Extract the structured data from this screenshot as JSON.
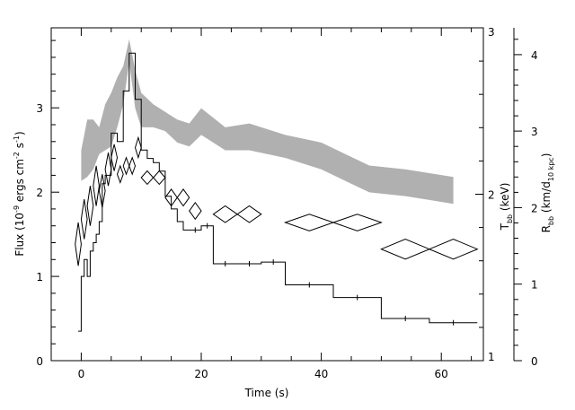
{
  "chart_data": {
    "type": "line",
    "xlabel": "Time (s)",
    "xlim": [
      -5,
      67
    ],
    "x_ticks": [
      "0",
      "20",
      "40",
      "60"
    ],
    "axes": {
      "flux": {
        "label_main": "Flux (10",
        "label_sup1": "-9",
        "label_mid": " ergs cm",
        "label_sup2": "-2",
        "label_mid2": " s",
        "label_sup3": "-1",
        "label_end": ")",
        "ylim": [
          0,
          3.95
        ],
        "ticks": [
          "0",
          "1",
          "2",
          "3"
        ]
      },
      "temperature": {
        "label_main": "T",
        "label_sub": "bb",
        "label_end": " (keV)",
        "ylim": [
          1,
          3
        ],
        "ticks": [
          "1",
          "2",
          "3"
        ]
      },
      "radius": {
        "label_main": "R",
        "label_sub": "bb",
        "label_mid": " (km/d",
        "label_sub2": "10 kpc",
        "label_end": ")",
        "ylim": [
          0,
          4.35
        ],
        "ticks": [
          "0",
          "1",
          "2",
          "3",
          "4"
        ]
      }
    },
    "series": [
      {
        "kind": "step",
        "axis": "flux",
        "color": "#000000",
        "edges": [
          -0.5,
          0,
          0.5,
          1,
          1.5,
          2,
          2.5,
          3,
          3.5,
          4,
          5,
          6,
          7,
          8,
          9,
          10,
          11,
          12,
          13,
          14,
          15,
          16,
          17,
          18,
          20,
          22,
          26,
          30,
          34,
          42,
          50,
          58,
          66
        ],
        "values": [
          0.35,
          1.0,
          1.2,
          1.0,
          1.3,
          1.4,
          1.5,
          1.65,
          2.1,
          2.2,
          2.7,
          2.6,
          3.2,
          3.65,
          3.1,
          2.5,
          2.4,
          2.35,
          2.25,
          1.95,
          1.8,
          1.65,
          1.55,
          1.55,
          1.6,
          1.15,
          1.15,
          1.17,
          0.9,
          0.75,
          0.5,
          0.45
        ]
      },
      {
        "kind": "band",
        "axis": "radius",
        "color": "#b0b0b0",
        "x": [
          0,
          1,
          2,
          3,
          4,
          5,
          6,
          7,
          8,
          9,
          10,
          12,
          14,
          16,
          18,
          20,
          24,
          28,
          34,
          40,
          44,
          48,
          54,
          58,
          62
        ],
        "lower": [
          2.35,
          2.4,
          2.5,
          2.7,
          2.75,
          2.8,
          3.05,
          3.35,
          3.9,
          3.3,
          3.05,
          3.05,
          3.0,
          2.85,
          2.8,
          2.95,
          2.75,
          2.75,
          2.65,
          2.5,
          2.35,
          2.2,
          2.15,
          2.1,
          2.05
        ],
        "upper": [
          2.75,
          3.15,
          3.15,
          3.05,
          3.35,
          3.5,
          3.7,
          3.85,
          4.2,
          3.8,
          3.5,
          3.35,
          3.25,
          3.15,
          3.1,
          3.3,
          3.05,
          3.1,
          2.95,
          2.85,
          2.7,
          2.55,
          2.5,
          2.45,
          2.4
        ]
      },
      {
        "kind": "diamonds",
        "axis": "temperature",
        "color": "#000000",
        "points": [
          {
            "x": -0.5,
            "y": 1.7,
            "dx": 0.5,
            "dy": 0.13
          },
          {
            "x": 0.5,
            "y": 1.85,
            "dx": 0.5,
            "dy": 0.12
          },
          {
            "x": 1.5,
            "y": 1.93,
            "dx": 0.5,
            "dy": 0.12
          },
          {
            "x": 2.5,
            "y": 2.05,
            "dx": 0.5,
            "dy": 0.12
          },
          {
            "x": 3.5,
            "y": 2.02,
            "dx": 0.5,
            "dy": 0.1
          },
          {
            "x": 4.5,
            "y": 2.15,
            "dx": 0.5,
            "dy": 0.1
          },
          {
            "x": 5.5,
            "y": 2.22,
            "dx": 0.5,
            "dy": 0.08
          },
          {
            "x": 6.5,
            "y": 2.12,
            "dx": 0.5,
            "dy": 0.05
          },
          {
            "x": 7.5,
            "y": 2.17,
            "dx": 0.5,
            "dy": 0.05
          },
          {
            "x": 8.5,
            "y": 2.17,
            "dx": 0.5,
            "dy": 0.05
          },
          {
            "x": 9.5,
            "y": 2.28,
            "dx": 0.5,
            "dy": 0.06
          },
          {
            "x": 11,
            "y": 2.1,
            "dx": 1,
            "dy": 0.04
          },
          {
            "x": 13,
            "y": 2.1,
            "dx": 1,
            "dy": 0.04
          },
          {
            "x": 15,
            "y": 1.98,
            "dx": 1,
            "dy": 0.05
          },
          {
            "x": 17,
            "y": 1.98,
            "dx": 1,
            "dy": 0.05
          },
          {
            "x": 19,
            "y": 1.9,
            "dx": 1,
            "dy": 0.05
          },
          {
            "x": 24,
            "y": 1.88,
            "dx": 2,
            "dy": 0.05
          },
          {
            "x": 28,
            "y": 1.88,
            "dx": 2,
            "dy": 0.05
          },
          {
            "x": 38,
            "y": 1.83,
            "dx": 4,
            "dy": 0.05
          },
          {
            "x": 46,
            "y": 1.83,
            "dx": 4,
            "dy": 0.05
          },
          {
            "x": 54,
            "y": 1.67,
            "dx": 4,
            "dy": 0.06
          },
          {
            "x": 62,
            "y": 1.67,
            "dx": 4,
            "dy": 0.06
          }
        ]
      }
    ]
  }
}
